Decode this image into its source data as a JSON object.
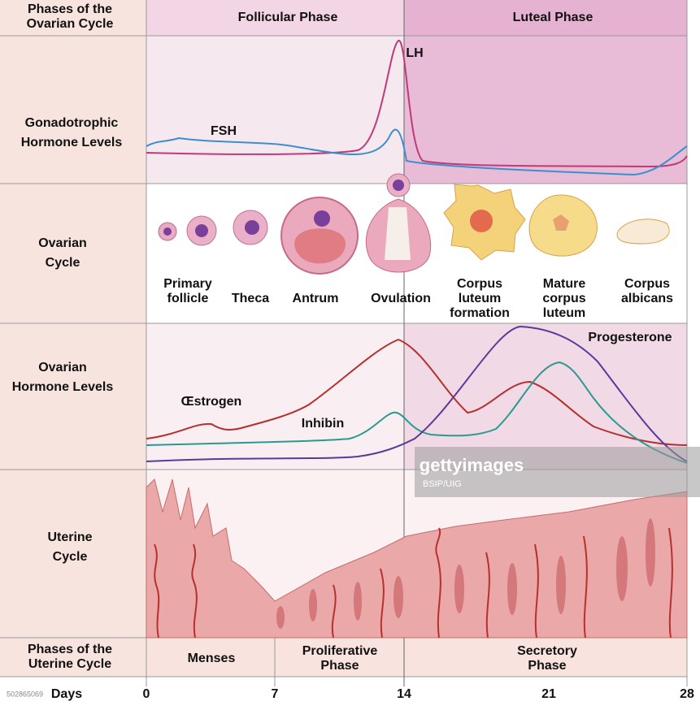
{
  "header": {
    "label": [
      "Phases of the",
      "Ovarian Cycle"
    ],
    "phases": [
      "Follicular Phase",
      "Luteal Phase"
    ]
  },
  "gonadotrophic": {
    "label": [
      "Gonadotrophic",
      "Hormone Levels"
    ],
    "curves": [
      "LH",
      "FSH"
    ]
  },
  "ovarian_cycle": {
    "label": [
      "Ovarian",
      "Cycle"
    ],
    "stages": [
      [
        "Primary",
        "follicle"
      ],
      [
        "Theca"
      ],
      [
        "Antrum"
      ],
      [
        "Ovulation"
      ],
      [
        "Corpus",
        "luteum",
        "formation"
      ],
      [
        "Mature",
        "corpus",
        "luteum"
      ],
      [
        "Corpus",
        "albicans"
      ]
    ]
  },
  "ovarian_hormones": {
    "label": [
      "Ovarian",
      "Hormone Levels"
    ],
    "curves": [
      "Œstrogen",
      "Inhibin",
      "Progesterone"
    ]
  },
  "uterine": {
    "label": [
      "Uterine",
      "Cycle"
    ]
  },
  "uterine_phases": {
    "label": [
      "Phases of the",
      "Uterine Cycle"
    ],
    "phases": [
      [
        "Menses"
      ],
      [
        "Proliferative",
        "Phase"
      ],
      [
        "Secretory",
        "Phase"
      ]
    ]
  },
  "days": {
    "label": "Days",
    "ticks": [
      "0",
      "7",
      "14",
      "21",
      "28"
    ]
  },
  "watermark": {
    "brand": "gettyimages",
    "credit": "BSIP/UIG",
    "id": "502865069"
  }
}
